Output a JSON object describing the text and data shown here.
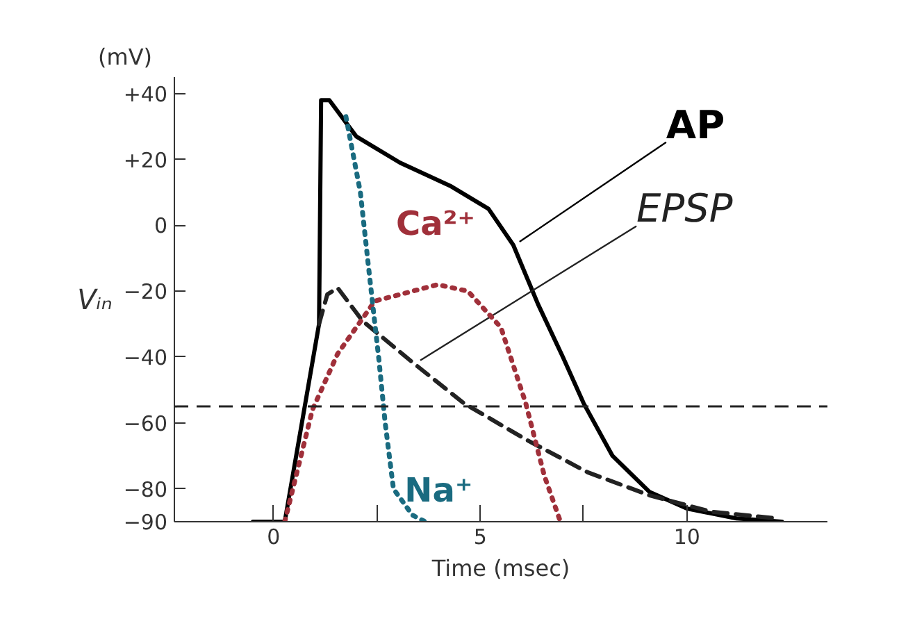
{
  "chart_data": {
    "type": "line",
    "xlabel": "Time (msec)",
    "ylabel": "Vᵢₙ",
    "annotations": [
      "(mV)"
    ],
    "xlim": [
      -2.4,
      13.4
    ],
    "ylim": [
      -90,
      45
    ],
    "xticks": [
      0,
      {
        "value": 2.5,
        "label": null
      },
      5,
      {
        "value": 7.5,
        "label": null
      },
      10
    ],
    "yticks": [
      {
        "value": 40,
        "label": "+40"
      },
      {
        "value": 20,
        "label": "+20"
      },
      0,
      -20,
      -40,
      -60,
      -80,
      -90
    ],
    "grid": false,
    "marker": "none",
    "ref_lines": [
      {
        "axis": "y",
        "value": -55,
        "line_style": "dashed",
        "color": "#222222"
      }
    ],
    "series": [
      {
        "name": "AP",
        "color": "#000000",
        "line_style": "solid",
        "x": [
          -0.5,
          0.27,
          1.1,
          1.15,
          1.35,
          2.0,
          3.06,
          4.27,
          5.2,
          5.8,
          6.4,
          7.0,
          7.5,
          8.2,
          9.1,
          10.0,
          11.2,
          12.3
        ],
        "values": [
          -90,
          -90,
          -30,
          38,
          38,
          27,
          19,
          12,
          5,
          -6,
          -24,
          -40,
          -54,
          -70,
          -81,
          -86,
          -89,
          -90
        ]
      },
      {
        "name": "EPSP",
        "color": "#222222",
        "line_style": "dashed",
        "x": [
          1.1,
          1.3,
          1.55,
          2.15,
          3.4,
          4.6,
          6.1,
          7.6,
          9.1,
          10.6,
          12.2
        ],
        "values": [
          -30,
          -21,
          -19,
          -29,
          -42,
          -54,
          -65,
          -75,
          -82,
          -87,
          -89
        ]
      },
      {
        "name": "Ca²⁺",
        "color": "#a0303a",
        "line_style": "dotted",
        "x": [
          0.27,
          0.94,
          1.55,
          2.45,
          3.97,
          4.7,
          5.5,
          6.1,
          6.55,
          6.94
        ],
        "values": [
          -90,
          -56,
          -39,
          -23,
          -18,
          -20,
          -31,
          -54,
          -76,
          -90
        ]
      },
      {
        "name": "Na⁺",
        "color": "#1a6b80",
        "line_style": "dotted",
        "x": [
          1.75,
          2.1,
          2.3,
          2.55,
          2.7,
          2.9,
          3.36,
          3.67
        ],
        "values": [
          33,
          10,
          -13,
          -41,
          -60,
          -80,
          -88,
          -90
        ]
      }
    ]
  }
}
